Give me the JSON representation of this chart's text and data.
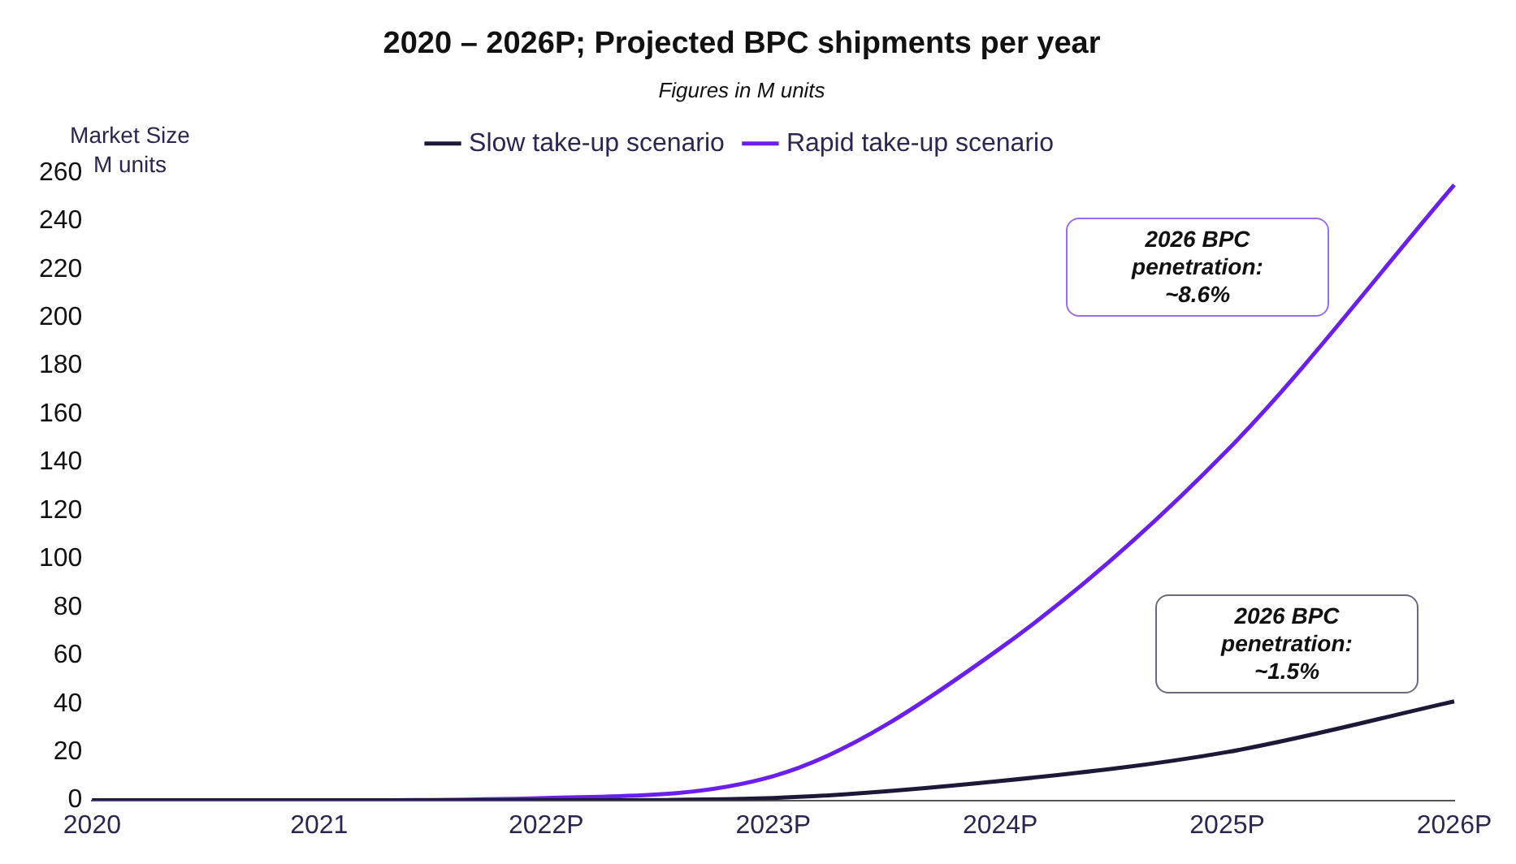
{
  "chart_data": {
    "type": "line",
    "title": "2020 – 2026P; Projected BPC shipments per year",
    "subtitle": "Figures in M units",
    "ylabel": "Market Size\nM units",
    "categories": [
      "2020",
      "2021",
      "2022P",
      "2023P",
      "2024P",
      "2025P",
      "2026P"
    ],
    "series": [
      {
        "name": "Slow take-up scenario",
        "color": "#1c1838",
        "values": [
          0,
          0,
          0,
          1,
          8,
          20,
          41
        ]
      },
      {
        "name": "Rapid take-up scenario",
        "color": "#6a1ff0",
        "values": [
          0,
          0,
          1,
          10,
          63,
          145,
          255
        ]
      }
    ],
    "ylim": [
      0,
      260
    ],
    "yticks": [
      0,
      20,
      40,
      60,
      80,
      100,
      120,
      140,
      160,
      180,
      200,
      220,
      240,
      260
    ],
    "grid": false,
    "legend": "top",
    "marker": "none",
    "line_style": "solid",
    "annotations": [
      "2026 BPC penetration: ~8.6%",
      "2026 BPC penetration: ~1.5%"
    ]
  }
}
